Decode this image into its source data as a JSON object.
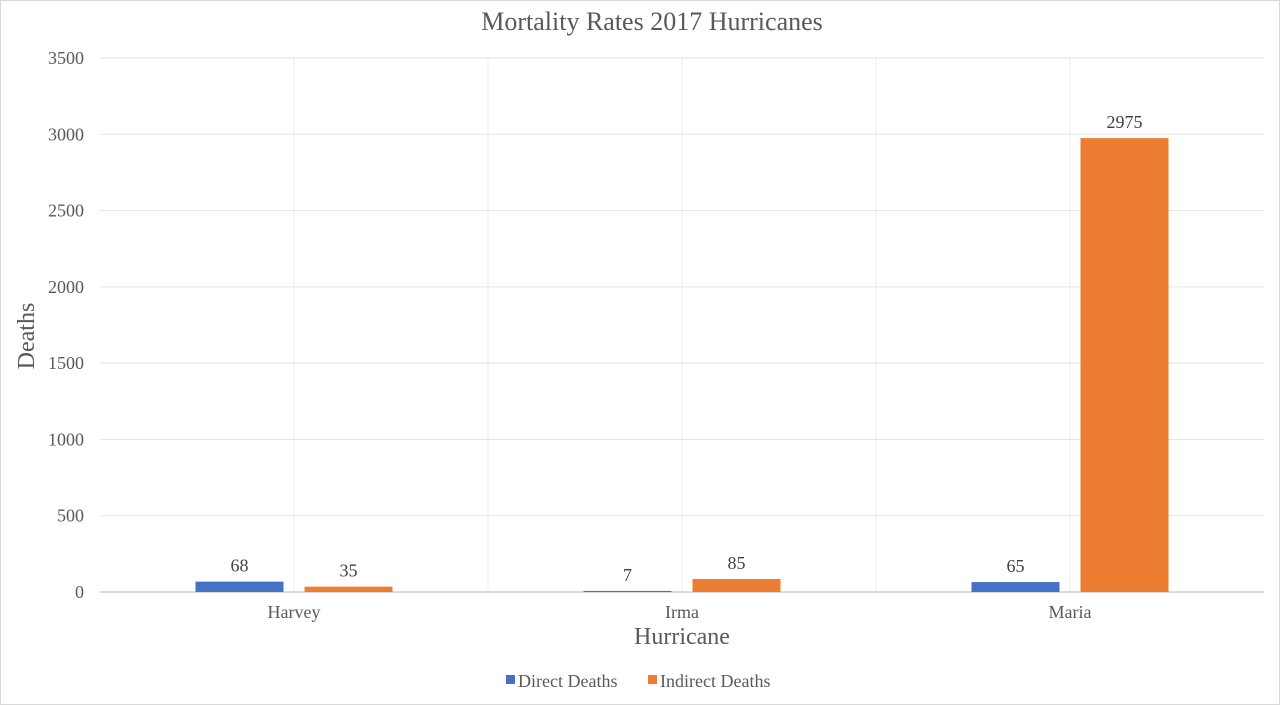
{
  "chart_data": {
    "type": "bar",
    "title": "Mortality Rates 2017 Hurricanes",
    "xlabel": "Hurricane",
    "ylabel": "Deaths",
    "categories": [
      "Harvey",
      "Irma",
      "Maria"
    ],
    "series": [
      {
        "name": "Direct Deaths",
        "values": [
          68,
          7,
          65
        ],
        "color": "#4472C4"
      },
      {
        "name": "Indirect Deaths",
        "values": [
          35,
          85,
          2975
        ],
        "color": "#ED7D31"
      }
    ],
    "ylim": [
      0,
      3500
    ],
    "yticks": [
      0,
      500,
      1000,
      1500,
      2000,
      2500,
      3000,
      3500
    ],
    "grid": true,
    "data_labels": true,
    "legend_position": "bottom"
  }
}
